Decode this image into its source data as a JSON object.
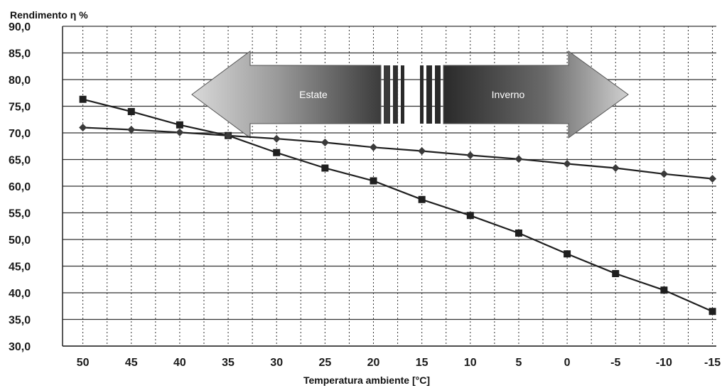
{
  "chart_data": {
    "type": "line",
    "ylabel": "Rendimento η %",
    "xlabel": "Temperatura ambiente [°C]",
    "x_ticks": [
      50,
      45,
      40,
      35,
      30,
      25,
      20,
      15,
      10,
      5,
      0,
      -5,
      -10,
      -15
    ],
    "y_ticks": [
      "90,0",
      "85,0",
      "80,0",
      "75,0",
      "70,0",
      "65,0",
      "60,0",
      "55,0",
      "50,0",
      "45,0",
      "40,0",
      "35,0",
      "30,0"
    ],
    "xlim": [
      50,
      -15
    ],
    "ylim": [
      30,
      90
    ],
    "grid": true,
    "series": [
      {
        "marker": "square",
        "x": [
          50,
          45,
          40,
          35,
          30,
          25,
          20,
          15,
          10,
          5,
          0,
          -5,
          -10,
          -15
        ],
        "y": [
          76.3,
          74.0,
          71.5,
          69.5,
          66.3,
          63.4,
          61.0,
          57.5,
          54.5,
          51.2,
          47.3,
          43.6,
          40.5,
          36.5
        ]
      },
      {
        "marker": "diamond",
        "x": [
          50,
          45,
          40,
          35,
          30,
          25,
          20,
          15,
          10,
          5,
          0,
          -5,
          -10,
          -15
        ],
        "y": [
          71.0,
          70.6,
          70.1,
          69.5,
          68.9,
          68.2,
          67.3,
          66.6,
          65.8,
          65.1,
          64.2,
          63.4,
          62.3,
          61.4
        ]
      }
    ],
    "annotations": {
      "left_label": "Estate",
      "right_label": "Inverno"
    },
    "colors": {
      "line": "#1f1f1f",
      "grid": "#333333",
      "arrow_dark": "#2a2a2a",
      "arrow_light": "#d0d0d0"
    }
  }
}
